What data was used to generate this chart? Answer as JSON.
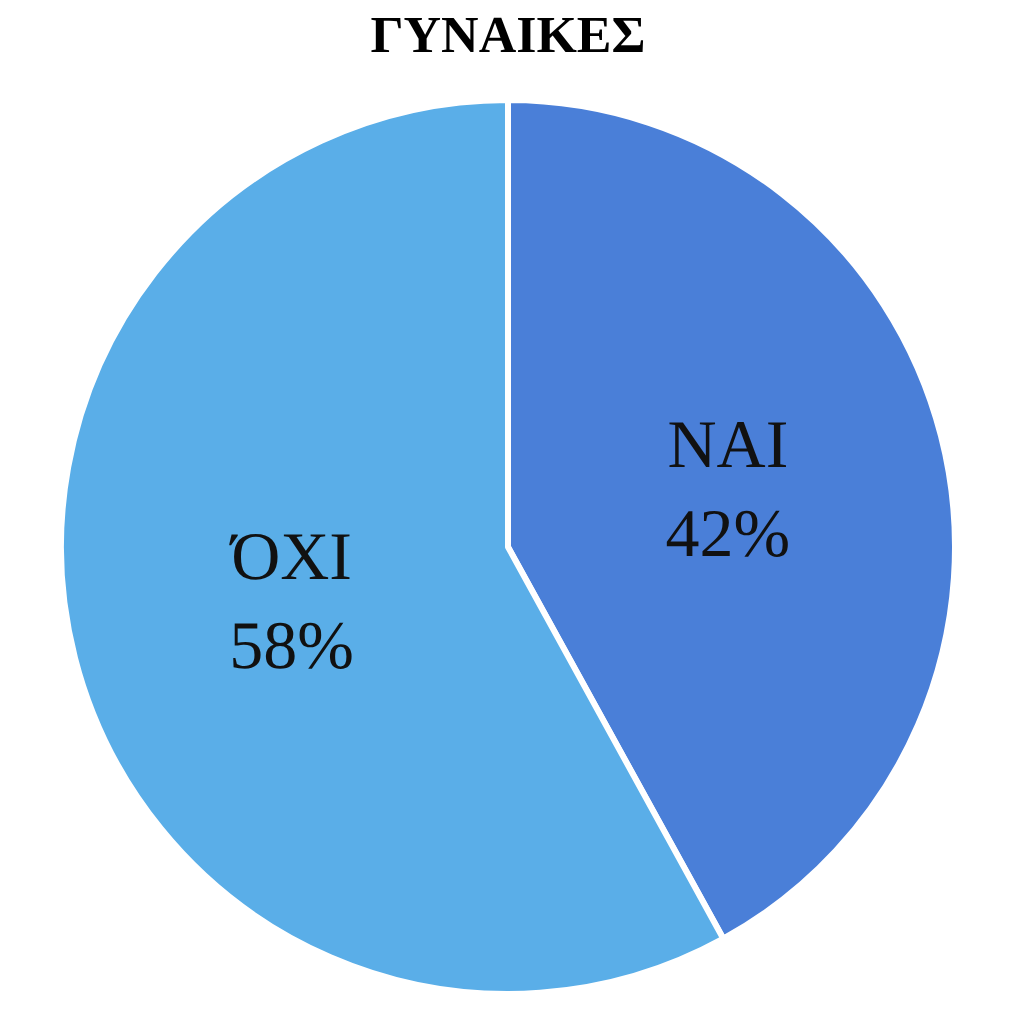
{
  "chart_data": {
    "type": "pie",
    "title": "ΓΥΝΑΙΚΕΣ",
    "categories": [
      "NAI",
      "ΌΧΙ"
    ],
    "values": [
      42,
      58
    ],
    "value_labels": [
      "42%",
      "58%"
    ],
    "colors": [
      "#4a7fd8",
      "#5aaee8"
    ],
    "legend": false
  }
}
